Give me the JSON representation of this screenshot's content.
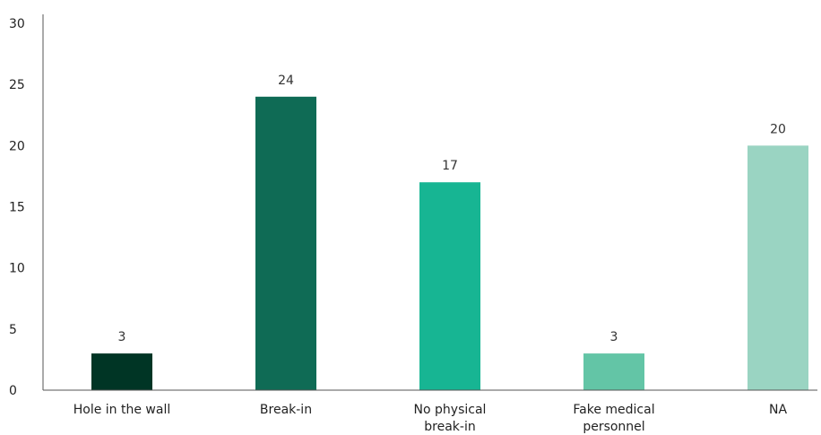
{
  "chart_data": {
    "type": "bar",
    "categories": [
      [
        "Hole in the wall"
      ],
      [
        "Break-in"
      ],
      [
        "No physical",
        "break-in"
      ],
      [
        "Fake medical",
        "personnel"
      ],
      [
        "NA"
      ]
    ],
    "values": [
      3,
      24,
      17,
      3,
      20
    ],
    "colors": [
      "#003525",
      "#0f6b55",
      "#17b593",
      "#63c5a6",
      "#9ad4c2"
    ],
    "title": "",
    "xlabel": "",
    "ylabel": "",
    "ylim": [
      0,
      30
    ],
    "yticks": [
      0,
      5,
      10,
      15,
      20,
      25,
      30
    ],
    "grid": false,
    "legend": "none"
  }
}
